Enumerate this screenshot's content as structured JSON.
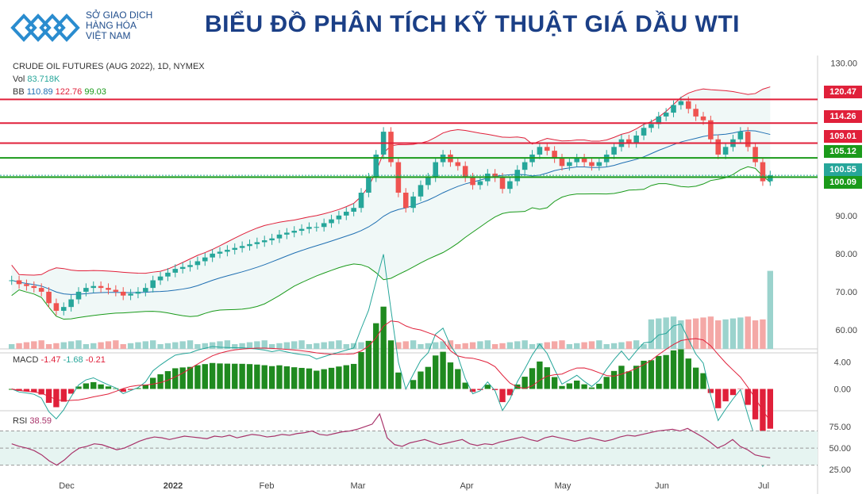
{
  "header": {
    "org_line1": "SỞ GIAO DỊCH",
    "org_line2": "HÀNG HÓA",
    "org_line3": "VIỆT NAM",
    "title": "BIỂU ĐỒ PHÂN TÍCH KỸ THUẬT GIÁ DẦU WTI"
  },
  "colors": {
    "up": "#26a69a",
    "down": "#ef5350",
    "resist": "#e0203a",
    "support": "#1a9a1a",
    "brand": "#1b3f86"
  },
  "chart_data": {
    "type": "candlestick",
    "instrument": "CRUDE OIL FUTURES (AUG 2022), 1D, NYMEX",
    "vol_label": "Vol",
    "vol_value": "83.718K",
    "bb_label": "BB",
    "bb_values": [
      "110.89",
      "122.76",
      "99.03"
    ],
    "price_ticks": [
      "130.00",
      "90.00",
      "80.00",
      "70.00",
      "60.00"
    ],
    "x_labels": [
      "Dec",
      "2022",
      "Feb",
      "Mar",
      "Apr",
      "May",
      "Jun",
      "Jul"
    ],
    "levels": [
      {
        "value": "120.47",
        "kind": "resistance",
        "price": 120.47
      },
      {
        "value": "114.26",
        "kind": "resistance",
        "price": 114.26
      },
      {
        "value": "109.01",
        "kind": "resistance",
        "price": 109.01
      },
      {
        "value": "105.12",
        "kind": "support",
        "price": 105.12
      },
      {
        "value": "100.55",
        "kind": "last",
        "price": 100.55
      },
      {
        "value": "100.09",
        "kind": "support",
        "price": 100.09
      }
    ],
    "close_series": [
      73,
      72,
      71.5,
      71,
      70,
      67,
      65,
      66,
      68,
      70,
      71,
      71.5,
      71,
      70.5,
      70,
      69,
      69.5,
      70,
      71,
      73,
      74,
      75,
      76,
      76.5,
      77,
      78,
      79,
      80,
      80.5,
      81,
      81.5,
      82,
      82.5,
      83,
      83.5,
      84,
      85,
      85.5,
      86,
      86.5,
      87,
      87,
      88,
      89,
      90,
      91,
      92,
      96,
      100,
      106,
      112,
      104,
      96,
      92,
      95,
      98,
      100,
      104,
      106,
      104,
      103,
      100,
      98,
      99,
      101,
      100,
      97,
      99,
      102,
      104,
      106,
      108,
      107,
      105,
      103,
      104,
      105,
      104,
      103,
      104,
      106,
      108,
      110,
      109,
      111,
      113,
      114,
      116,
      117,
      119,
      120,
      118,
      116,
      115,
      110,
      106,
      108,
      110,
      112,
      108,
      104,
      99,
      100.55
    ],
    "macd": {
      "label": "MACD",
      "values": [
        "-1.47",
        "-1.68",
        "-0.21"
      ],
      "ticks": [
        "4.00",
        "0.00"
      ]
    },
    "rsi": {
      "label": "RSI",
      "value": "38.59",
      "ticks": [
        "75.00",
        "50.00",
        "25.00"
      ],
      "series": [
        55,
        52,
        50,
        47,
        42,
        35,
        30,
        36,
        44,
        50,
        52,
        55,
        54,
        51,
        48,
        50,
        54,
        58,
        61,
        63,
        62,
        60,
        62,
        64,
        63,
        62,
        61,
        64,
        63,
        65,
        62,
        64,
        66,
        65,
        63,
        64,
        66,
        65,
        67,
        68,
        70,
        66,
        65,
        67,
        69,
        70,
        72,
        75,
        78,
        90,
        62,
        54,
        52,
        56,
        58,
        60,
        57,
        54,
        56,
        58,
        60,
        55,
        53,
        55,
        54,
        57,
        59,
        61,
        63,
        60,
        58,
        62,
        64,
        62,
        60,
        58,
        60,
        62,
        60,
        58,
        60,
        63,
        65,
        64,
        66,
        68,
        70,
        71,
        72,
        70,
        73,
        68,
        63,
        57,
        50,
        54,
        60,
        52,
        48,
        42,
        40,
        38.59
      ]
    }
  }
}
